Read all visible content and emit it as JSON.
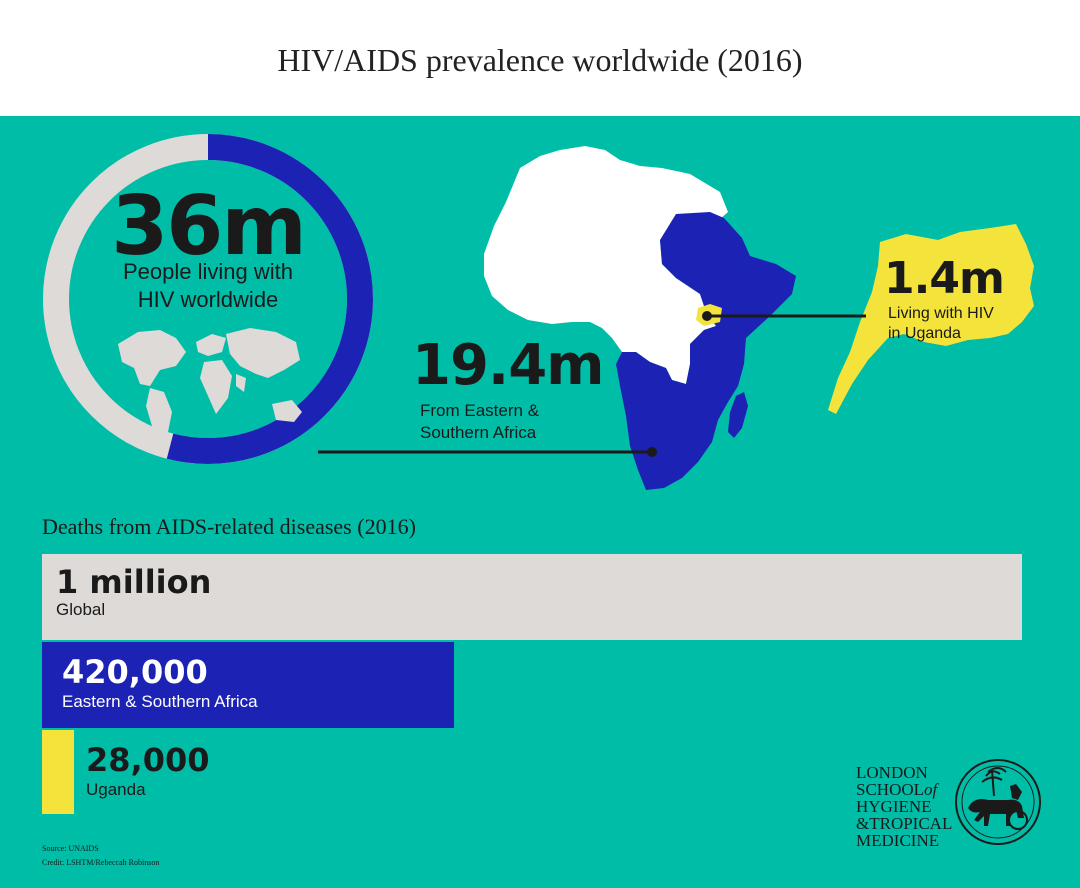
{
  "title": "HIV/AIDS prevalence worldwide (2016)",
  "colors": {
    "teal": "#00bda8",
    "blue": "#1c22b3",
    "grey": "#dedad7",
    "yellow": "#f3e33b",
    "text": "#1a1a1a"
  },
  "donut": {
    "value": "36m",
    "label_line1": "People living with",
    "label_line2": "HIV worldwide",
    "fraction_blue": 0.54
  },
  "africa": {
    "value": "19.4m",
    "label_line1": "From Eastern &",
    "label_line2": "Southern Africa"
  },
  "uganda": {
    "value": "1.4m",
    "label_line1": "Living with HIV",
    "label_line2": "in Uganda"
  },
  "deaths": {
    "heading": "Deaths from AIDS-related diseases (2016)",
    "bars": [
      {
        "value": "1 million",
        "label": "Global",
        "amount": 1000000
      },
      {
        "value": "420,000",
        "label": "Eastern & Southern Africa",
        "amount": 420000
      },
      {
        "value": "28,000",
        "label": "Uganda",
        "amount": 28000
      }
    ]
  },
  "source": "Source: UNAIDS",
  "credit": "Credit: LSHTM/Rebeccah Robinson",
  "logo": {
    "line1": "LONDON",
    "line2": "SCHOOL",
    "line2_of": "of",
    "line3": "HYGIENE",
    "line4": "&TROPICAL",
    "line5": "MEDICINE"
  }
}
